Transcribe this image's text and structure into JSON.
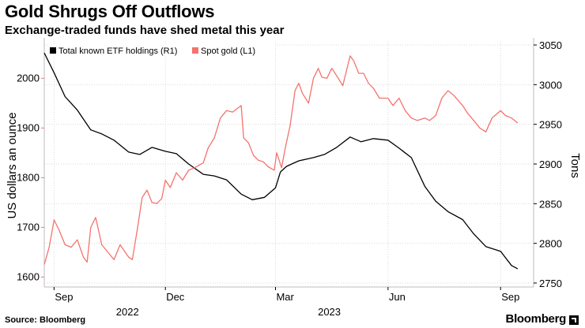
{
  "title": "Gold Shrugs Off Outflows",
  "subtitle": "Exchange-traded funds have shed metal this year",
  "source": "Source: Bloomberg",
  "brand": "Bloomberg",
  "colors": {
    "etf": "#000000",
    "gold": "#f4736d",
    "grid": "#d9d9d9"
  },
  "chart_data": {
    "type": "line",
    "title": "Gold Shrugs Off Outflows",
    "subtitle": "Exchange-traded funds have shed metal this year",
    "xlabel": "",
    "ylabel_left": "US dollars an ounce",
    "ylabel_right": "Tons",
    "xlim": [
      "2022-08-24",
      "2023-09-28"
    ],
    "ylim_left": [
      1580,
      2075
    ],
    "ylim_right": [
      2745,
      3055
    ],
    "x_ticks": [
      {
        "date": "2022-09-01",
        "label": "Sep"
      },
      {
        "date": "2022-12-01",
        "label": "Dec"
      },
      {
        "date": "2023-03-01",
        "label": "Mar"
      },
      {
        "date": "2023-06-01",
        "label": "Jun"
      },
      {
        "date": "2023-09-01",
        "label": "Sep"
      }
    ],
    "year_labels": [
      {
        "date": "2022-10-31",
        "label": "2022"
      },
      {
        "date": "2023-04-14",
        "label": "2023"
      }
    ],
    "left_ticks": [
      1600,
      1700,
      1800,
      1900,
      2000
    ],
    "right_ticks": [
      2750,
      2800,
      2850,
      2900,
      2950,
      3000,
      3050
    ],
    "grid": true,
    "legend": {
      "placement": "top-left"
    },
    "series": [
      {
        "name": "Total known ETF holdings (R1)",
        "axis": "right",
        "color": "#000000",
        "x": [
          "2022-08-24",
          "2022-09-01",
          "2022-09-10",
          "2022-09-20",
          "2022-10-01",
          "2022-10-10",
          "2022-10-20",
          "2022-11-01",
          "2022-11-10",
          "2022-11-20",
          "2022-12-01",
          "2022-12-10",
          "2022-12-20",
          "2023-01-01",
          "2023-01-10",
          "2023-01-20",
          "2023-02-01",
          "2023-02-10",
          "2023-02-20",
          "2023-03-01",
          "2023-03-05",
          "2023-03-10",
          "2023-03-20",
          "2023-04-01",
          "2023-04-10",
          "2023-04-20",
          "2023-05-01",
          "2023-05-10",
          "2023-05-20",
          "2023-06-01",
          "2023-06-10",
          "2023-06-20",
          "2023-07-01",
          "2023-07-10",
          "2023-07-20",
          "2023-08-01",
          "2023-08-10",
          "2023-08-20",
          "2023-09-01",
          "2023-09-10",
          "2023-09-15"
        ],
        "values": [
          3040,
          3015,
          2985,
          2968,
          2943,
          2938,
          2930,
          2915,
          2912,
          2921,
          2916,
          2913,
          2900,
          2887,
          2885,
          2880,
          2862,
          2855,
          2858,
          2870,
          2890,
          2897,
          2904,
          2908,
          2912,
          2921,
          2934,
          2928,
          2932,
          2930,
          2920,
          2908,
          2872,
          2853,
          2840,
          2830,
          2812,
          2796,
          2790,
          2772,
          2768
        ]
      },
      {
        "name": "Spot gold (L1)",
        "axis": "left",
        "color": "#f4736d",
        "x": [
          "2022-08-24",
          "2022-08-28",
          "2022-09-01",
          "2022-09-05",
          "2022-09-10",
          "2022-09-15",
          "2022-09-20",
          "2022-09-25",
          "2022-09-28",
          "2022-10-01",
          "2022-10-05",
          "2022-10-10",
          "2022-10-15",
          "2022-10-20",
          "2022-10-25",
          "2022-11-01",
          "2022-11-04",
          "2022-11-08",
          "2022-11-12",
          "2022-11-16",
          "2022-11-20",
          "2022-11-24",
          "2022-11-28",
          "2022-12-01",
          "2022-12-05",
          "2022-12-10",
          "2022-12-15",
          "2022-12-20",
          "2022-12-25",
          "2023-01-01",
          "2023-01-05",
          "2023-01-10",
          "2023-01-15",
          "2023-01-20",
          "2023-01-25",
          "2023-02-01",
          "2023-02-03",
          "2023-02-07",
          "2023-02-11",
          "2023-02-15",
          "2023-02-19",
          "2023-02-23",
          "2023-02-28",
          "2023-03-02",
          "2023-03-06",
          "2023-03-09",
          "2023-03-13",
          "2023-03-17",
          "2023-03-20",
          "2023-03-23",
          "2023-03-28",
          "2023-04-01",
          "2023-04-05",
          "2023-04-08",
          "2023-04-12",
          "2023-04-16",
          "2023-04-20",
          "2023-04-25",
          "2023-05-01",
          "2023-05-04",
          "2023-05-08",
          "2023-05-12",
          "2023-05-16",
          "2023-05-20",
          "2023-05-25",
          "2023-06-01",
          "2023-06-05",
          "2023-06-10",
          "2023-06-15",
          "2023-06-20",
          "2023-06-25",
          "2023-07-01",
          "2023-07-05",
          "2023-07-10",
          "2023-07-15",
          "2023-07-20",
          "2023-07-25",
          "2023-08-01",
          "2023-08-05",
          "2023-08-10",
          "2023-08-15",
          "2023-08-20",
          "2023-08-25",
          "2023-09-01",
          "2023-09-05",
          "2023-09-10",
          "2023-09-15"
        ],
        "values": [
          1625,
          1660,
          1715,
          1695,
          1665,
          1660,
          1675,
          1640,
          1630,
          1700,
          1720,
          1665,
          1650,
          1635,
          1665,
          1640,
          1635,
          1695,
          1760,
          1775,
          1750,
          1748,
          1758,
          1795,
          1780,
          1810,
          1795,
          1815,
          1820,
          1830,
          1860,
          1880,
          1920,
          1935,
          1932,
          1945,
          1880,
          1870,
          1845,
          1835,
          1832,
          1822,
          1815,
          1850,
          1820,
          1860,
          1905,
          1975,
          1990,
          1970,
          1950,
          2000,
          2020,
          2002,
          2000,
          2020,
          2005,
          1985,
          2045,
          2035,
          2010,
          2010,
          1990,
          1980,
          1960,
          1960,
          1945,
          1960,
          1935,
          1920,
          1915,
          1920,
          1915,
          1925,
          1960,
          1975,
          1965,
          1945,
          1930,
          1915,
          1900,
          1892,
          1920,
          1935,
          1925,
          1920,
          1910
        ]
      }
    ]
  }
}
